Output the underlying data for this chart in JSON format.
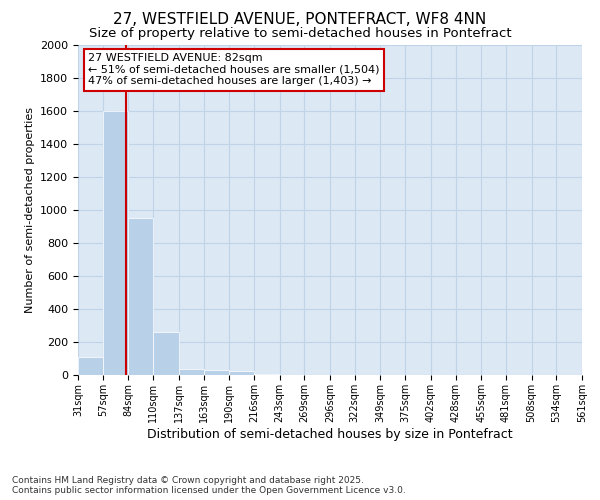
{
  "title": "27, WESTFIELD AVENUE, PONTEFRACT, WF8 4NN",
  "subtitle": "Size of property relative to semi-detached houses in Pontefract",
  "xlabel": "Distribution of semi-detached houses by size in Pontefract",
  "ylabel": "Number of semi-detached properties",
  "footer_line1": "Contains HM Land Registry data © Crown copyright and database right 2025.",
  "footer_line2": "Contains public sector information licensed under the Open Government Licence v3.0.",
  "annotation_title": "27 WESTFIELD AVENUE: 82sqm",
  "annotation_line1": "← 51% of semi-detached houses are smaller (1,504)",
  "annotation_line2": "47% of semi-detached houses are larger (1,403) →",
  "property_size": 82,
  "bar_edges": [
    31,
    57,
    84,
    110,
    137,
    163,
    190,
    216,
    243,
    269,
    296,
    322,
    349,
    375,
    402,
    428,
    455,
    481,
    508,
    534,
    561
  ],
  "bar_heights": [
    110,
    1600,
    950,
    260,
    35,
    30,
    25,
    5,
    3,
    2,
    1,
    1,
    1,
    0,
    0,
    0,
    0,
    0,
    0,
    0
  ],
  "bar_color": "#b8d0e8",
  "red_line_color": "#cc0000",
  "grid_color": "#c0d4e8",
  "bg_color": "#dce8f4",
  "ylim": [
    0,
    2000
  ],
  "yticks": [
    0,
    200,
    400,
    600,
    800,
    1000,
    1200,
    1400,
    1600,
    1800,
    2000
  ],
  "tick_labels": [
    "31sqm",
    "57sqm",
    "84sqm",
    "110sqm",
    "137sqm",
    "163sqm",
    "190sqm",
    "216sqm",
    "243sqm",
    "269sqm",
    "296sqm",
    "322sqm",
    "349sqm",
    "375sqm",
    "402sqm",
    "428sqm",
    "455sqm",
    "481sqm",
    "508sqm",
    "534sqm",
    "561sqm"
  ],
  "annotation_box_edge_color": "#cc0000",
  "title_fontsize": 11,
  "subtitle_fontsize": 9.5,
  "ylabel_fontsize": 8,
  "xlabel_fontsize": 9,
  "footer_fontsize": 6.5,
  "annotation_fontsize": 8
}
